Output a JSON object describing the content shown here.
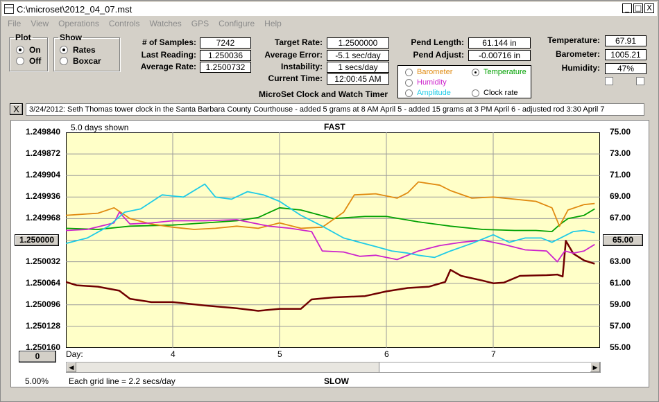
{
  "window": {
    "title": "C:\\microset\\2012_04_07.mst",
    "buttons": [
      "_",
      "□",
      "X"
    ]
  },
  "menu": [
    "File",
    "View",
    "Operations",
    "Controls",
    "Watches",
    "GPS",
    "Configure",
    "Help"
  ],
  "plot_group": {
    "title": "Plot",
    "options": [
      "On",
      "Off"
    ],
    "selected": "On"
  },
  "show_group": {
    "title": "Show",
    "options": [
      "Rates",
      "Boxcar"
    ],
    "selected": "Rates"
  },
  "stats": {
    "samples_label": "# of Samples:",
    "samples": "7242",
    "last_reading_label": "Last Reading:",
    "last_reading": "1.250036",
    "average_rate_label": "Average Rate:",
    "average_rate": "1.2500732",
    "target_rate_label": "Target Rate:",
    "target_rate": "1.2500000",
    "average_error_label": "Average Error:",
    "average_error": "-5.1 sec/day",
    "instability_label": "Instability:",
    "instability": "1 secs/day",
    "current_time_label": "Current Time:",
    "current_time": "12:00:45 AM",
    "pend_length_label": "Pend Length:",
    "pend_length": "61.144 in",
    "pend_adjust_label": "Pend Adjust:",
    "pend_adjust": "-0.00716 in",
    "temperature_label": "Temperature:",
    "temperature": "67.91",
    "barometer_label": "Barometer:",
    "barometer": "1005.21",
    "humidity_label": "Humidity:",
    "humidity": "47%"
  },
  "app_heading": "MicroSet Clock and Watch Timer",
  "sensor_select": {
    "options": [
      {
        "label": "Barometer",
        "color": "#e08a10"
      },
      {
        "label": "Temperature",
        "color": "#00a000"
      },
      {
        "label": "Humidity",
        "color": "#cc22cc"
      },
      {
        "label": "Amplitude",
        "color": "#1ecbe6"
      },
      {
        "label": "Clock rate",
        "color": "#000000"
      }
    ],
    "selected": "Temperature"
  },
  "note_close": "X",
  "note": "3/24/2012: Seth Thomas tower clock in the Santa Barbara County Courthouse - added 5 grams at 8 AM April 5 - added 15 grams at 3 PM April 6 - adjusted rod 3:30 April 7",
  "chart": {
    "days_shown": "5.0 days shown",
    "top_label": "FAST",
    "bottom_label": "SLOW",
    "left_button": "1.250000",
    "right_button": "65.00",
    "zero_button": "0",
    "percent": "5.00%",
    "grid_note": "Each grid line = 2.2 secs/day",
    "x_prefix": "Day:",
    "left_ticks": [
      "1.249840",
      "1.249872",
      "1.249904",
      "1.249936",
      "1.249968",
      "1.250000",
      "1.250032",
      "1.250064",
      "1.250096",
      "1.250128",
      "1.250160"
    ],
    "right_ticks": [
      "75.00",
      "73.00",
      "71.00",
      "69.00",
      "67.00",
      "65.00",
      "63.00",
      "61.00",
      "59.00",
      "57.00",
      "55.00"
    ],
    "x_ticks": [
      "4",
      "5",
      "6",
      "7"
    ]
  },
  "chart_data": {
    "type": "line",
    "x_range": [
      3.0,
      8.0
    ],
    "x_ticks": [
      4,
      5,
      6,
      7
    ],
    "y_left": {
      "range": [
        1.25016,
        1.24984
      ],
      "ticks": [
        1.24984,
        1.249872,
        1.249904,
        1.249936,
        1.249968,
        1.25,
        1.250032,
        1.250064,
        1.250096,
        1.250128,
        1.25016
      ]
    },
    "y_right": {
      "range": [
        55,
        75
      ],
      "ticks": [
        75,
        73,
        71,
        69,
        67,
        65,
        63,
        61,
        59,
        57,
        55
      ]
    },
    "grid": true,
    "series": [
      {
        "name": "Clock rate",
        "color": "#700000",
        "axis": "left",
        "points": [
          [
            3.0,
            1.250062
          ],
          [
            3.1,
            1.250067
          ],
          [
            3.3,
            1.250069
          ],
          [
            3.5,
            1.250075
          ],
          [
            3.6,
            1.250087
          ],
          [
            3.8,
            1.250092
          ],
          [
            4.0,
            1.250092
          ],
          [
            4.3,
            1.250097
          ],
          [
            4.6,
            1.250101
          ],
          [
            4.8,
            1.250105
          ],
          [
            5.0,
            1.250102
          ],
          [
            5.2,
            1.250102
          ],
          [
            5.3,
            1.250088
          ],
          [
            5.5,
            1.250085
          ],
          [
            5.8,
            1.250083
          ],
          [
            6.0,
            1.250076
          ],
          [
            6.2,
            1.250071
          ],
          [
            6.4,
            1.250069
          ],
          [
            6.55,
            1.250062
          ],
          [
            6.6,
            1.250044
          ],
          [
            6.7,
            1.250053
          ],
          [
            6.9,
            1.25006
          ],
          [
            7.0,
            1.250064
          ],
          [
            7.1,
            1.250063
          ],
          [
            7.25,
            1.250053
          ],
          [
            7.5,
            1.250052
          ],
          [
            7.6,
            1.250051
          ],
          [
            7.65,
            1.250054
          ],
          [
            7.68,
            1.250001
          ],
          [
            7.75,
            1.25002
          ],
          [
            7.85,
            1.25003
          ],
          [
            7.95,
            1.250035
          ]
        ]
      },
      {
        "name": "Temperature",
        "color": "#00a000",
        "axis": "right",
        "points": [
          [
            3.0,
            66.1
          ],
          [
            3.3,
            66.0
          ],
          [
            3.6,
            66.3
          ],
          [
            4.0,
            66.4
          ],
          [
            4.3,
            66.6
          ],
          [
            4.6,
            66.8
          ],
          [
            4.8,
            67.1
          ],
          [
            5.0,
            68.0
          ],
          [
            5.2,
            67.8
          ],
          [
            5.5,
            67.0
          ],
          [
            5.8,
            67.2
          ],
          [
            6.0,
            67.2
          ],
          [
            6.3,
            66.7
          ],
          [
            6.6,
            66.3
          ],
          [
            6.9,
            66.0
          ],
          [
            7.2,
            65.9
          ],
          [
            7.4,
            65.9
          ],
          [
            7.55,
            65.8
          ],
          [
            7.63,
            66.5
          ],
          [
            7.7,
            67.0
          ],
          [
            7.85,
            67.3
          ],
          [
            7.95,
            67.9
          ]
        ]
      },
      {
        "name": "Barometer",
        "color": "#e08a10",
        "axis": "right",
        "points": [
          [
            3.0,
            67.3
          ],
          [
            3.3,
            67.5
          ],
          [
            3.45,
            68.0
          ],
          [
            3.6,
            67.0
          ],
          [
            3.8,
            66.5
          ],
          [
            4.0,
            66.2
          ],
          [
            4.2,
            66.0
          ],
          [
            4.4,
            66.1
          ],
          [
            4.6,
            66.3
          ],
          [
            4.8,
            66.1
          ],
          [
            5.0,
            66.6
          ],
          [
            5.2,
            66.1
          ],
          [
            5.4,
            66.2
          ],
          [
            5.6,
            67.6
          ],
          [
            5.7,
            69.2
          ],
          [
            5.9,
            69.3
          ],
          [
            6.1,
            68.9
          ],
          [
            6.2,
            69.4
          ],
          [
            6.3,
            70.4
          ],
          [
            6.5,
            70.1
          ],
          [
            6.6,
            69.6
          ],
          [
            6.8,
            68.9
          ],
          [
            7.0,
            69.0
          ],
          [
            7.2,
            68.8
          ],
          [
            7.4,
            68.6
          ],
          [
            7.55,
            68.0
          ],
          [
            7.62,
            66.3
          ],
          [
            7.7,
            67.8
          ],
          [
            7.85,
            68.3
          ],
          [
            7.95,
            68.4
          ]
        ]
      },
      {
        "name": "Humidity",
        "color": "#cc22cc",
        "axis": "right",
        "points": [
          [
            3.0,
            65.9
          ],
          [
            3.2,
            66.0
          ],
          [
            3.45,
            66.6
          ],
          [
            3.5,
            67.6
          ],
          [
            3.6,
            66.5
          ],
          [
            3.8,
            66.6
          ],
          [
            4.0,
            66.8
          ],
          [
            4.3,
            66.8
          ],
          [
            4.6,
            66.9
          ],
          [
            4.9,
            66.3
          ],
          [
            5.1,
            66.1
          ],
          [
            5.3,
            65.8
          ],
          [
            5.4,
            64.0
          ],
          [
            5.6,
            63.9
          ],
          [
            5.75,
            63.5
          ],
          [
            5.9,
            63.6
          ],
          [
            6.1,
            63.2
          ],
          [
            6.3,
            64.0
          ],
          [
            6.5,
            64.5
          ],
          [
            6.7,
            64.8
          ],
          [
            6.9,
            65.0
          ],
          [
            7.1,
            64.6
          ],
          [
            7.3,
            64.1
          ],
          [
            7.5,
            64.0
          ],
          [
            7.6,
            63.0
          ],
          [
            7.67,
            64.0
          ],
          [
            7.75,
            63.8
          ],
          [
            7.85,
            64.0
          ],
          [
            7.95,
            64.6
          ]
        ]
      },
      {
        "name": "Amplitude",
        "color": "#1ecbe6",
        "axis": "right",
        "points": [
          [
            3.0,
            64.7
          ],
          [
            3.2,
            65.2
          ],
          [
            3.4,
            66.3
          ],
          [
            3.55,
            67.6
          ],
          [
            3.7,
            67.9
          ],
          [
            3.9,
            69.2
          ],
          [
            4.1,
            69.0
          ],
          [
            4.3,
            70.2
          ],
          [
            4.4,
            69.0
          ],
          [
            4.55,
            68.8
          ],
          [
            4.7,
            69.5
          ],
          [
            4.85,
            69.2
          ],
          [
            5.0,
            68.6
          ],
          [
            5.2,
            67.3
          ],
          [
            5.4,
            66.3
          ],
          [
            5.6,
            65.2
          ],
          [
            5.75,
            64.8
          ],
          [
            5.9,
            64.4
          ],
          [
            6.05,
            64.0
          ],
          [
            6.2,
            63.8
          ],
          [
            6.3,
            63.6
          ],
          [
            6.45,
            63.4
          ],
          [
            6.6,
            64.0
          ],
          [
            6.8,
            64.7
          ],
          [
            7.0,
            65.5
          ],
          [
            7.15,
            64.8
          ],
          [
            7.3,
            65.2
          ],
          [
            7.45,
            65.2
          ],
          [
            7.55,
            64.8
          ],
          [
            7.65,
            65.3
          ],
          [
            7.75,
            65.8
          ],
          [
            7.85,
            65.9
          ],
          [
            7.95,
            65.7
          ]
        ]
      }
    ]
  }
}
